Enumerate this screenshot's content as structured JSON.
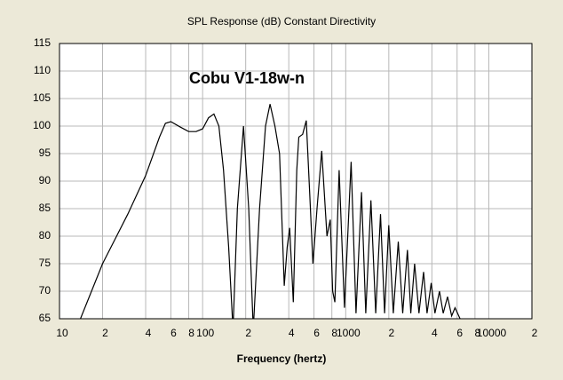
{
  "chart_data": {
    "type": "line",
    "title": "SPL Response (dB)   Constant Directivity",
    "annotation": "Cobu V1-18w-n",
    "x_label": "Frequency (hertz)",
    "x_log": true,
    "grid": true,
    "color": "#000000",
    "xlim": [
      10,
      20000
    ],
    "ylim": [
      65,
      115
    ],
    "xticks": [
      10,
      {
        "value": 20,
        "label": "2"
      },
      {
        "value": 40,
        "label": "4"
      },
      {
        "value": 60,
        "label": "6"
      },
      {
        "value": 80,
        "label": "8"
      },
      100,
      {
        "value": 200,
        "label": "2"
      },
      {
        "value": 400,
        "label": "4"
      },
      {
        "value": 600,
        "label": "6"
      },
      {
        "value": 800,
        "label": "8"
      },
      1000,
      {
        "value": 2000,
        "label": "2"
      },
      {
        "value": 4000,
        "label": "4"
      },
      {
        "value": 6000,
        "label": "6"
      },
      {
        "value": 8000,
        "label": "8"
      },
      10000,
      {
        "value": 20000,
        "label": "2"
      }
    ],
    "yticks": [
      65,
      70,
      75,
      80,
      85,
      90,
      95,
      100,
      105,
      110,
      115
    ],
    "x": [
      14,
      20,
      30,
      40,
      50,
      55,
      60,
      70,
      80,
      90,
      100,
      110,
      120,
      130,
      140,
      152,
      163,
      175,
      193,
      210,
      226,
      250,
      275,
      296,
      320,
      345,
      372,
      390,
      406,
      430,
      455,
      470,
      500,
      530,
      560,
      590,
      630,
      680,
      740,
      780,
      810,
      840,
      900,
      980,
      1090,
      1180,
      1290,
      1380,
      1500,
      1620,
      1750,
      1870,
      2000,
      2150,
      2330,
      2500,
      2700,
      2850,
      3030,
      3250,
      3500,
      3700,
      3960,
      4200,
      4520,
      4800,
      5150,
      5500,
      5800,
      6300
    ],
    "values": [
      65,
      75,
      84,
      91,
      98,
      100.5,
      100.8,
      99.8,
      99,
      99,
      99.5,
      101.5,
      102.2,
      100,
      92,
      78,
      63,
      85,
      100,
      85,
      63,
      85,
      100,
      104,
      100,
      95,
      71,
      78,
      81.5,
      68,
      92,
      98,
      98.5,
      101,
      88,
      75,
      85,
      95.5,
      80,
      83,
      70,
      68,
      92,
      67,
      93.5,
      66,
      88,
      66,
      86.5,
      66,
      84,
      66,
      82,
      66,
      79,
      66,
      77.5,
      66,
      75,
      66,
      73.5,
      66,
      71.5,
      66,
      70,
      66,
      69,
      65.5,
      67,
      65
    ]
  }
}
